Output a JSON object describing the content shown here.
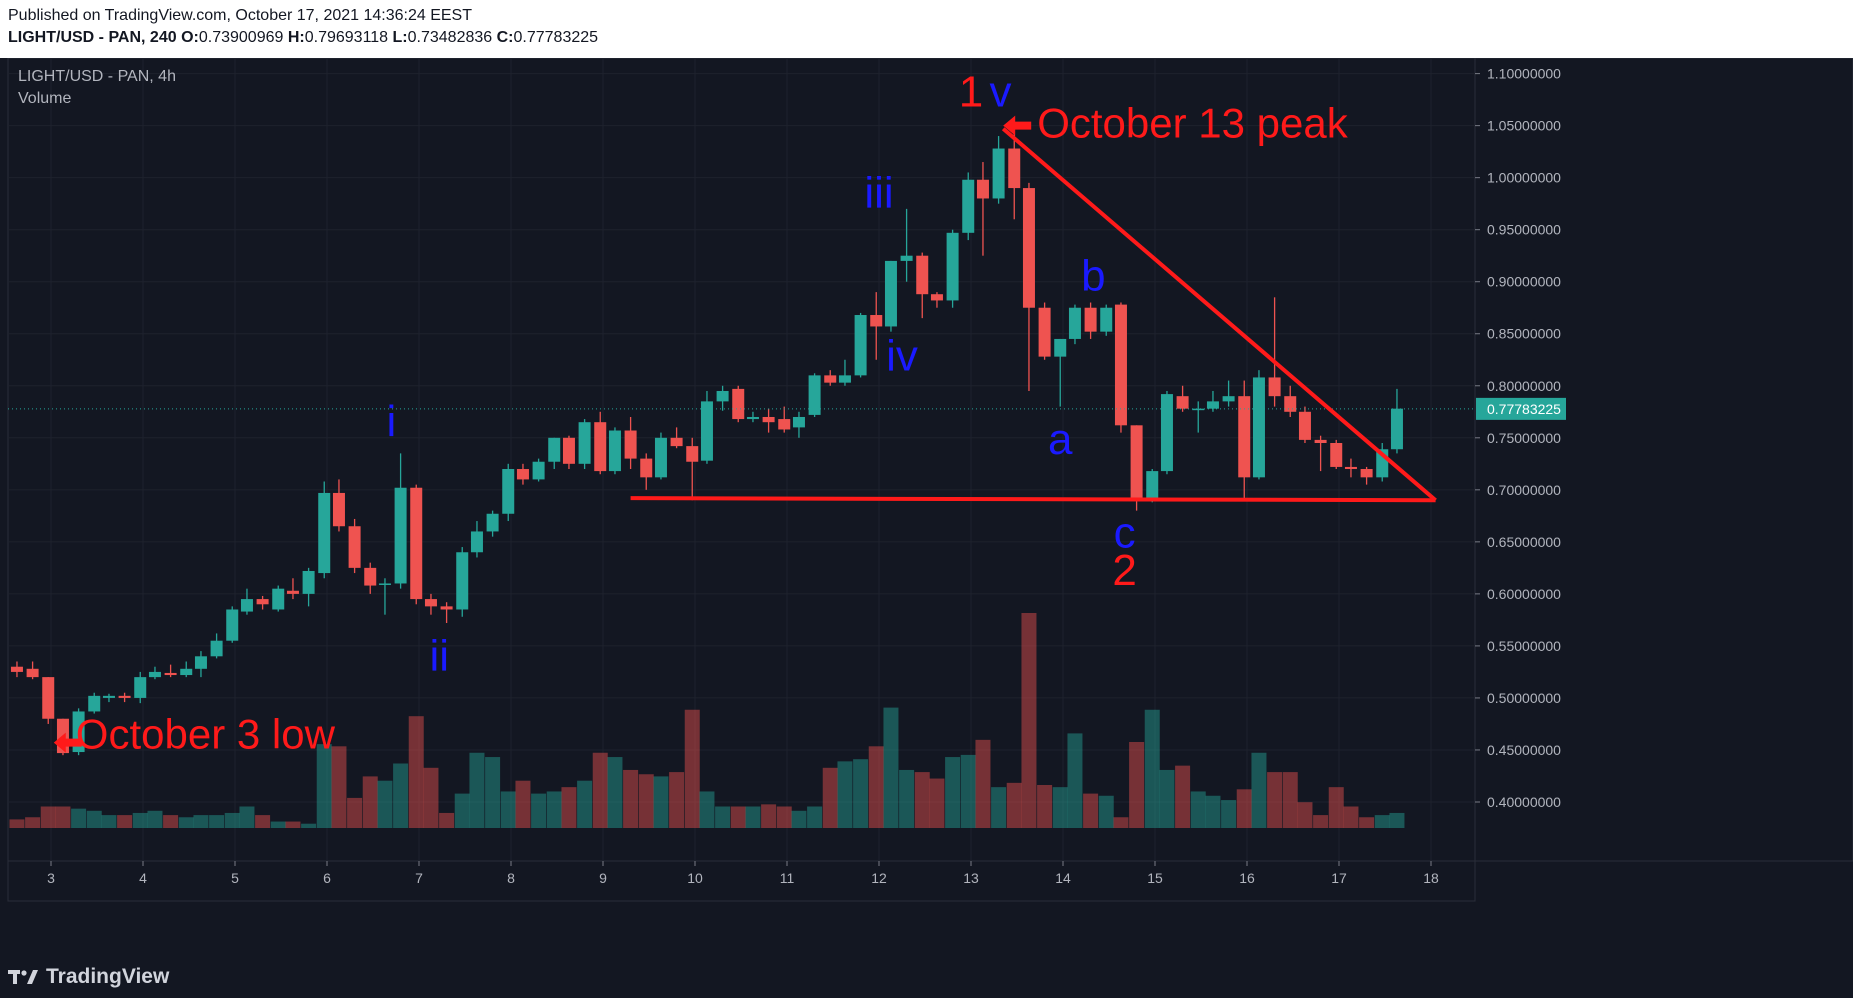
{
  "header": {
    "published": "Published on TradingView.com, October 17, 2021 14:36:24 EEST",
    "symbol_line": "LIGHT/USD - PAN, 240",
    "o_label": "O:",
    "o_value": "0.73900969",
    "h_label": "H:",
    "h_value": "0.79693118",
    "l_label": "L:",
    "l_value": "0.73482836",
    "c_label": "C:",
    "c_value": "0.77783225"
  },
  "legend": {
    "title": "LIGHT/USD - PAN, 4h",
    "indicator": "Volume"
  },
  "footer": {
    "brand": "TradingView"
  },
  "colors": {
    "up": "#26a69a",
    "down": "#ef5350",
    "annotation_red": "#ff1a1a",
    "wave_blue": "#1a1aff",
    "last_price_bg": "#26a69a"
  },
  "chart_data": {
    "type": "candlestick",
    "price_range": [
      0.375,
      1.115
    ],
    "y_ticks": [
      "1.10000000",
      "1.05000000",
      "1.00000000",
      "0.95000000",
      "0.90000000",
      "0.85000000",
      "0.80000000",
      "0.75000000",
      "0.70000000",
      "0.65000000",
      "0.60000000",
      "0.55000000",
      "0.50000000",
      "0.45000000",
      "0.40000000"
    ],
    "x_ticks": [
      {
        "label": "3",
        "t": 3.0
      },
      {
        "label": "4",
        "t": 4.0
      },
      {
        "label": "5",
        "t": 5.0
      },
      {
        "label": "6",
        "t": 6.0
      },
      {
        "label": "7",
        "t": 7.0
      },
      {
        "label": "8",
        "t": 8.0
      },
      {
        "label": "9",
        "t": 9.0
      },
      {
        "label": "10",
        "t": 10.0
      },
      {
        "label": "11",
        "t": 11.0
      },
      {
        "label": "12",
        "t": 12.0
      },
      {
        "label": "13",
        "t": 13.0
      },
      {
        "label": "14",
        "t": 14.0
      },
      {
        "label": "15",
        "t": 15.0
      },
      {
        "label": "16",
        "t": 16.0
      },
      {
        "label": "17",
        "t": 17.0
      },
      {
        "label": "18",
        "t": 18.0
      }
    ],
    "last_price": "0.77783225",
    "last_price_value": 0.7778,
    "volume_max": 1.0,
    "candles": [
      {
        "t": 2.63,
        "o": 0.53,
        "h": 0.535,
        "l": 0.52,
        "c": 0.525
      },
      {
        "t": 2.8,
        "o": 0.528,
        "h": 0.535,
        "l": 0.518,
        "c": 0.52
      },
      {
        "t": 2.97,
        "o": 0.52,
        "h": 0.52,
        "l": 0.475,
        "c": 0.48
      },
      {
        "t": 3.13,
        "o": 0.48,
        "h": 0.48,
        "l": 0.445,
        "c": 0.447
      },
      {
        "t": 3.3,
        "o": 0.448,
        "h": 0.49,
        "l": 0.445,
        "c": 0.487
      },
      {
        "t": 3.47,
        "o": 0.487,
        "h": 0.505,
        "l": 0.485,
        "c": 0.502
      },
      {
        "t": 3.63,
        "o": 0.5,
        "h": 0.504,
        "l": 0.496,
        "c": 0.502
      },
      {
        "t": 3.8,
        "o": 0.502,
        "h": 0.505,
        "l": 0.496,
        "c": 0.5
      },
      {
        "t": 3.97,
        "o": 0.5,
        "h": 0.525,
        "l": 0.495,
        "c": 0.52
      },
      {
        "t": 4.13,
        "o": 0.52,
        "h": 0.53,
        "l": 0.518,
        "c": 0.525
      },
      {
        "t": 4.3,
        "o": 0.524,
        "h": 0.532,
        "l": 0.52,
        "c": 0.522
      },
      {
        "t": 4.47,
        "o": 0.522,
        "h": 0.535,
        "l": 0.52,
        "c": 0.528
      },
      {
        "t": 4.63,
        "o": 0.528,
        "h": 0.545,
        "l": 0.52,
        "c": 0.54
      },
      {
        "t": 4.8,
        "o": 0.54,
        "h": 0.562,
        "l": 0.538,
        "c": 0.555
      },
      {
        "t": 4.97,
        "o": 0.555,
        "h": 0.588,
        "l": 0.553,
        "c": 0.585
      },
      {
        "t": 5.13,
        "o": 0.583,
        "h": 0.605,
        "l": 0.58,
        "c": 0.595
      },
      {
        "t": 5.3,
        "o": 0.595,
        "h": 0.598,
        "l": 0.585,
        "c": 0.59
      },
      {
        "t": 5.47,
        "o": 0.585,
        "h": 0.608,
        "l": 0.583,
        "c": 0.605
      },
      {
        "t": 5.63,
        "o": 0.603,
        "h": 0.615,
        "l": 0.595,
        "c": 0.6
      },
      {
        "t": 5.8,
        "o": 0.6,
        "h": 0.625,
        "l": 0.588,
        "c": 0.622
      },
      {
        "t": 5.97,
        "o": 0.62,
        "h": 0.708,
        "l": 0.615,
        "c": 0.697
      },
      {
        "t": 6.13,
        "o": 0.697,
        "h": 0.71,
        "l": 0.66,
        "c": 0.665
      },
      {
        "t": 6.3,
        "o": 0.665,
        "h": 0.672,
        "l": 0.62,
        "c": 0.625
      },
      {
        "t": 6.47,
        "o": 0.625,
        "h": 0.63,
        "l": 0.6,
        "c": 0.608
      },
      {
        "t": 6.63,
        "o": 0.61,
        "h": 0.615,
        "l": 0.58,
        "c": 0.61
      },
      {
        "t": 6.8,
        "o": 0.61,
        "h": 0.735,
        "l": 0.605,
        "c": 0.702
      },
      {
        "t": 6.97,
        "o": 0.702,
        "h": 0.705,
        "l": 0.59,
        "c": 0.595
      },
      {
        "t": 7.13,
        "o": 0.595,
        "h": 0.6,
        "l": 0.58,
        "c": 0.588
      },
      {
        "t": 7.3,
        "o": 0.588,
        "h": 0.592,
        "l": 0.572,
        "c": 0.585
      },
      {
        "t": 7.47,
        "o": 0.585,
        "h": 0.645,
        "l": 0.578,
        "c": 0.64
      },
      {
        "t": 7.63,
        "o": 0.64,
        "h": 0.67,
        "l": 0.635,
        "c": 0.66
      },
      {
        "t": 7.8,
        "o": 0.66,
        "h": 0.68,
        "l": 0.655,
        "c": 0.677
      },
      {
        "t": 7.97,
        "o": 0.677,
        "h": 0.725,
        "l": 0.67,
        "c": 0.72
      },
      {
        "t": 8.13,
        "o": 0.72,
        "h": 0.725,
        "l": 0.705,
        "c": 0.71
      },
      {
        "t": 8.3,
        "o": 0.71,
        "h": 0.73,
        "l": 0.708,
        "c": 0.727
      },
      {
        "t": 8.47,
        "o": 0.727,
        "h": 0.75,
        "l": 0.72,
        "c": 0.75
      },
      {
        "t": 8.63,
        "o": 0.75,
        "h": 0.752,
        "l": 0.72,
        "c": 0.725
      },
      {
        "t": 8.8,
        "o": 0.725,
        "h": 0.768,
        "l": 0.72,
        "c": 0.765
      },
      {
        "t": 8.97,
        "o": 0.765,
        "h": 0.775,
        "l": 0.715,
        "c": 0.718
      },
      {
        "t": 9.13,
        "o": 0.718,
        "h": 0.76,
        "l": 0.715,
        "c": 0.757
      },
      {
        "t": 9.3,
        "o": 0.757,
        "h": 0.77,
        "l": 0.72,
        "c": 0.73
      },
      {
        "t": 9.47,
        "o": 0.73,
        "h": 0.735,
        "l": 0.7,
        "c": 0.712
      },
      {
        "t": 9.63,
        "o": 0.712,
        "h": 0.755,
        "l": 0.71,
        "c": 0.75
      },
      {
        "t": 9.8,
        "o": 0.75,
        "h": 0.76,
        "l": 0.74,
        "c": 0.742
      },
      {
        "t": 9.97,
        "o": 0.742,
        "h": 0.75,
        "l": 0.69,
        "c": 0.727
      },
      {
        "t": 10.13,
        "o": 0.728,
        "h": 0.795,
        "l": 0.725,
        "c": 0.785
      },
      {
        "t": 10.3,
        "o": 0.785,
        "h": 0.8,
        "l": 0.776,
        "c": 0.795
      },
      {
        "t": 10.47,
        "o": 0.797,
        "h": 0.8,
        "l": 0.765,
        "c": 0.768
      },
      {
        "t": 10.63,
        "o": 0.768,
        "h": 0.775,
        "l": 0.765,
        "c": 0.77
      },
      {
        "t": 10.8,
        "o": 0.77,
        "h": 0.778,
        "l": 0.755,
        "c": 0.765
      },
      {
        "t": 10.97,
        "o": 0.768,
        "h": 0.78,
        "l": 0.755,
        "c": 0.758
      },
      {
        "t": 11.13,
        "o": 0.76,
        "h": 0.775,
        "l": 0.75,
        "c": 0.77
      },
      {
        "t": 11.3,
        "o": 0.772,
        "h": 0.812,
        "l": 0.77,
        "c": 0.81
      },
      {
        "t": 11.47,
        "o": 0.81,
        "h": 0.815,
        "l": 0.8,
        "c": 0.803
      },
      {
        "t": 11.63,
        "o": 0.803,
        "h": 0.825,
        "l": 0.8,
        "c": 0.81
      },
      {
        "t": 11.8,
        "o": 0.81,
        "h": 0.87,
        "l": 0.808,
        "c": 0.868
      },
      {
        "t": 11.97,
        "o": 0.868,
        "h": 0.89,
        "l": 0.825,
        "c": 0.857
      },
      {
        "t": 12.13,
        "o": 0.857,
        "h": 0.92,
        "l": 0.852,
        "c": 0.92
      },
      {
        "t": 12.3,
        "o": 0.92,
        "h": 0.97,
        "l": 0.9,
        "c": 0.925
      },
      {
        "t": 12.47,
        "o": 0.925,
        "h": 0.928,
        "l": 0.865,
        "c": 0.888
      },
      {
        "t": 12.63,
        "o": 0.888,
        "h": 0.89,
        "l": 0.875,
        "c": 0.882
      },
      {
        "t": 12.8,
        "o": 0.882,
        "h": 0.95,
        "l": 0.875,
        "c": 0.947
      },
      {
        "t": 12.97,
        "o": 0.947,
        "h": 1.005,
        "l": 0.94,
        "c": 0.998
      },
      {
        "t": 13.13,
        "o": 0.998,
        "h": 1.015,
        "l": 0.925,
        "c": 0.98
      },
      {
        "t": 13.3,
        "o": 0.98,
        "h": 1.04,
        "l": 0.975,
        "c": 1.028
      },
      {
        "t": 13.47,
        "o": 1.028,
        "h": 1.05,
        "l": 0.96,
        "c": 0.99
      },
      {
        "t": 13.63,
        "o": 0.99,
        "h": 0.995,
        "l": 0.795,
        "c": 0.875
      },
      {
        "t": 13.8,
        "o": 0.875,
        "h": 0.88,
        "l": 0.825,
        "c": 0.828
      },
      {
        "t": 13.97,
        "o": 0.828,
        "h": 0.845,
        "l": 0.78,
        "c": 0.845
      },
      {
        "t": 14.13,
        "o": 0.845,
        "h": 0.878,
        "l": 0.84,
        "c": 0.875
      },
      {
        "t": 14.3,
        "o": 0.875,
        "h": 0.88,
        "l": 0.845,
        "c": 0.852
      },
      {
        "t": 14.47,
        "o": 0.852,
        "h": 0.878,
        "l": 0.848,
        "c": 0.875
      },
      {
        "t": 14.63,
        "o": 0.878,
        "h": 0.88,
        "l": 0.755,
        "c": 0.762
      },
      {
        "t": 14.8,
        "o": 0.762,
        "h": 0.762,
        "l": 0.68,
        "c": 0.69
      },
      {
        "t": 14.97,
        "o": 0.69,
        "h": 0.72,
        "l": 0.688,
        "c": 0.718
      },
      {
        "t": 15.13,
        "o": 0.718,
        "h": 0.795,
        "l": 0.715,
        "c": 0.792
      },
      {
        "t": 15.3,
        "o": 0.79,
        "h": 0.8,
        "l": 0.775,
        "c": 0.778
      },
      {
        "t": 15.47,
        "o": 0.778,
        "h": 0.785,
        "l": 0.755,
        "c": 0.778
      },
      {
        "t": 15.63,
        "o": 0.778,
        "h": 0.795,
        "l": 0.775,
        "c": 0.785
      },
      {
        "t": 15.8,
        "o": 0.785,
        "h": 0.805,
        "l": 0.78,
        "c": 0.79
      },
      {
        "t": 15.97,
        "o": 0.79,
        "h": 0.805,
        "l": 0.69,
        "c": 0.712
      },
      {
        "t": 16.13,
        "o": 0.712,
        "h": 0.815,
        "l": 0.71,
        "c": 0.808
      },
      {
        "t": 16.3,
        "o": 0.808,
        "h": 0.885,
        "l": 0.78,
        "c": 0.79
      },
      {
        "t": 16.47,
        "o": 0.79,
        "h": 0.8,
        "l": 0.77,
        "c": 0.775
      },
      {
        "t": 16.63,
        "o": 0.775,
        "h": 0.78,
        "l": 0.745,
        "c": 0.748
      },
      {
        "t": 16.8,
        "o": 0.748,
        "h": 0.752,
        "l": 0.718,
        "c": 0.745
      },
      {
        "t": 16.97,
        "o": 0.745,
        "h": 0.748,
        "l": 0.72,
        "c": 0.722
      },
      {
        "t": 17.13,
        "o": 0.722,
        "h": 0.73,
        "l": 0.712,
        "c": 0.72
      },
      {
        "t": 17.3,
        "o": 0.72,
        "h": 0.722,
        "l": 0.705,
        "c": 0.712
      },
      {
        "t": 17.47,
        "o": 0.712,
        "h": 0.745,
        "l": 0.708,
        "c": 0.739
      },
      {
        "t": 17.63,
        "o": 0.739,
        "h": 0.797,
        "l": 0.735,
        "c": 0.778
      }
    ],
    "volumes": [
      0.04,
      0.05,
      0.1,
      0.1,
      0.09,
      0.08,
      0.06,
      0.06,
      0.07,
      0.08,
      0.06,
      0.05,
      0.06,
      0.06,
      0.07,
      0.1,
      0.06,
      0.03,
      0.03,
      0.02,
      0.39,
      0.38,
      0.14,
      0.24,
      0.22,
      0.3,
      0.52,
      0.28,
      0.07,
      0.16,
      0.35,
      0.33,
      0.17,
      0.22,
      0.16,
      0.17,
      0.19,
      0.22,
      0.35,
      0.33,
      0.27,
      0.25,
      0.24,
      0.26,
      0.55,
      0.17,
      0.1,
      0.1,
      0.1,
      0.11,
      0.1,
      0.08,
      0.1,
      0.28,
      0.31,
      0.32,
      0.38,
      0.56,
      0.27,
      0.26,
      0.23,
      0.33,
      0.34,
      0.41,
      0.19,
      0.21,
      1.0,
      0.2,
      0.19,
      0.44,
      0.16,
      0.15,
      0.05,
      0.4,
      0.55,
      0.27,
      0.29,
      0.17,
      0.15,
      0.13,
      0.18,
      0.35,
      0.26,
      0.26,
      0.12,
      0.06,
      0.19,
      0.1,
      0.05,
      0.06,
      0.07,
      0.15
    ],
    "annotations": [
      {
        "text": "October 3 low",
        "x": 2.9,
        "y": 0.465
      },
      {
        "text": "October 13 peak",
        "x": 13.35,
        "y": 1.052
      },
      {
        "text": "1",
        "x": 13.0,
        "y": 1.082
      },
      {
        "text": "v",
        "x": 13.32,
        "y": 1.082
      },
      {
        "text": "i",
        "x": 6.7,
        "y": 0.765
      },
      {
        "text": "ii",
        "x": 7.22,
        "y": 0.54
      },
      {
        "text": "iii",
        "x": 12.0,
        "y": 0.985
      },
      {
        "text": "iv",
        "x": 12.25,
        "y": 0.828
      },
      {
        "text": "a",
        "x": 13.97,
        "y": 0.748
      },
      {
        "text": "b",
        "x": 14.33,
        "y": 0.905
      },
      {
        "text": "c",
        "x": 14.67,
        "y": 0.658
      },
      {
        "text": "2",
        "x": 14.67,
        "y": 0.622
      }
    ],
    "trendlines": [
      {
        "x1": 9.3,
        "y1": 0.692,
        "x2": 18.05,
        "y2": 0.69
      },
      {
        "x1": 13.35,
        "y1": 1.047,
        "x2": 18.05,
        "y2": 0.69
      }
    ]
  }
}
